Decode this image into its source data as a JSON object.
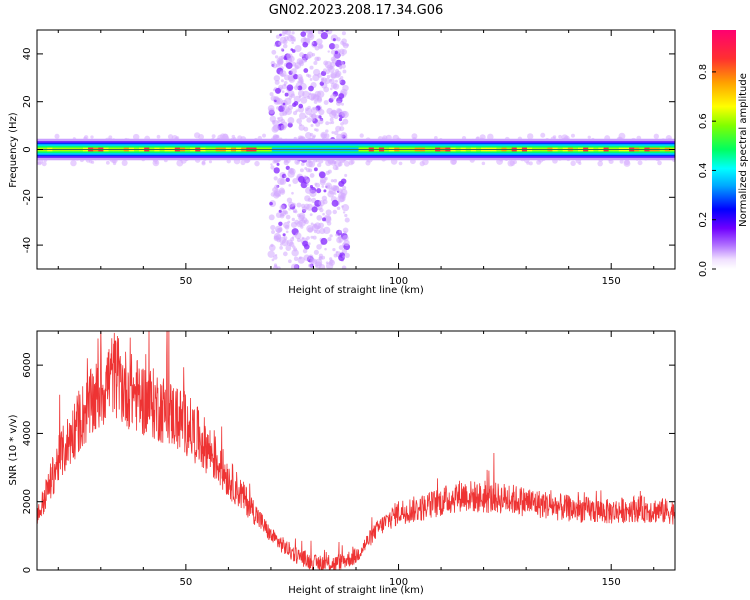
{
  "title": "GN02.2023.208.17.34.G06",
  "chart_data": [
    {
      "type": "heatmap",
      "xlabel": "Height of straight line (km)",
      "ylabel": "Frequency (Hz)",
      "xlim": [
        15,
        165
      ],
      "ylim": [
        -50,
        50
      ],
      "xticks": [
        50,
        100,
        150
      ],
      "yticks": [
        -40,
        -20,
        0,
        20,
        40
      ],
      "colorbar": {
        "label": "Normalized spectral amplitude",
        "range": [
          0,
          0.97
        ],
        "ticks": [
          0.0,
          0.2,
          0.4,
          0.6,
          0.8
        ],
        "tick_labels": [
          "0.0",
          "0.2",
          "0.4",
          "0.6",
          "0.8"
        ],
        "colors": [
          "#ffffff",
          "#c090ff",
          "#7000ff",
          "#0000ff",
          "#00ccff",
          "#00ff60",
          "#b0ff00",
          "#ffff00",
          "#ffa000",
          "#ff3030",
          "#ff0070"
        ]
      },
      "band": {
        "center_hz": 0,
        "half_width_hz": 3,
        "amplitude": "high",
        "color": "#ff3030"
      },
      "scatter_region": {
        "x_range_km": [
          70,
          88
        ],
        "amplitude_range": [
          0.05,
          0.3
        ]
      }
    },
    {
      "type": "line",
      "xlabel": "Height of straight line (km)",
      "ylabel": "SNR (10 * v/v)",
      "xlim": [
        15,
        165
      ],
      "ylim": [
        0,
        7000
      ],
      "xticks": [
        50,
        100,
        150
      ],
      "yticks": [
        0,
        2000,
        4000,
        6000
      ],
      "color": "#ee3333",
      "x": [
        15,
        20,
        25,
        30,
        33,
        35,
        40,
        45,
        50,
        55,
        60,
        65,
        70,
        75,
        80,
        85,
        90,
        95,
        100,
        105,
        110,
        115,
        120,
        125,
        130,
        135,
        140,
        145,
        150,
        155,
        160,
        165
      ],
      "values": [
        1500,
        3200,
        4400,
        5200,
        5800,
        5400,
        5000,
        4700,
        4300,
        3600,
        2700,
        1900,
        1000,
        500,
        200,
        180,
        400,
        1200,
        1700,
        1800,
        2000,
        2200,
        2100,
        2100,
        2000,
        1900,
        1800,
        1750,
        1700,
        1800,
        1750,
        1700
      ]
    }
  ]
}
